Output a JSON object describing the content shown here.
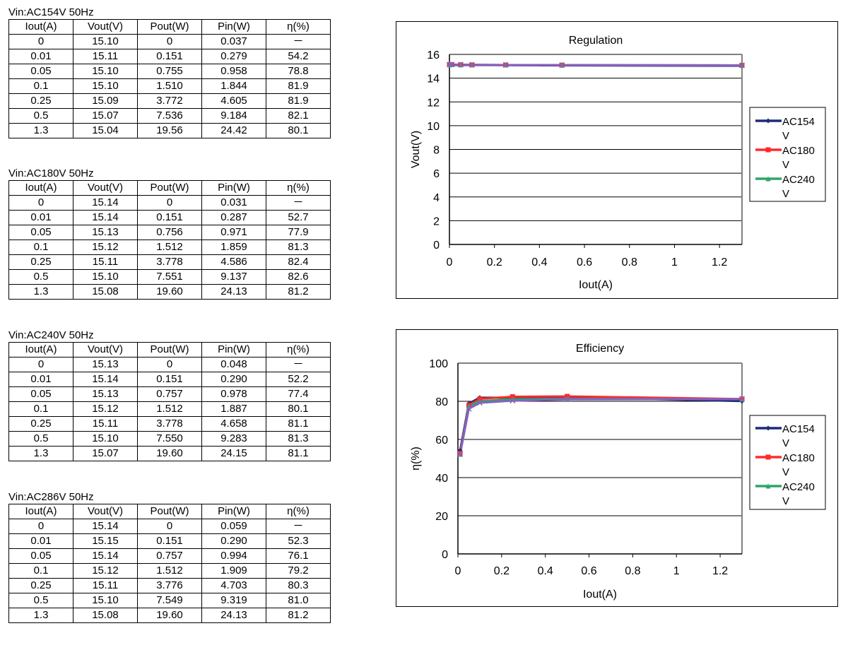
{
  "tables": [
    {
      "title": "Vin:AC154V 50Hz",
      "headers": [
        "Iout(A)",
        "Vout(V)",
        "Pout(W)",
        "Pin(W)",
        "η(%)"
      ],
      "rows": [
        [
          "0",
          "15.10",
          "0",
          "0.037",
          "－"
        ],
        [
          "0.01",
          "15.11",
          "0.151",
          "0.279",
          "54.2"
        ],
        [
          "0.05",
          "15.10",
          "0.755",
          "0.958",
          "78.8"
        ],
        [
          "0.1",
          "15.10",
          "1.510",
          "1.844",
          "81.9"
        ],
        [
          "0.25",
          "15.09",
          "3.772",
          "4.605",
          "81.9"
        ],
        [
          "0.5",
          "15.07",
          "7.536",
          "9.184",
          "82.1"
        ],
        [
          "1.3",
          "15.04",
          "19.56",
          "24.42",
          "80.1"
        ]
      ]
    },
    {
      "title": "Vin:AC180V 50Hz",
      "headers": [
        "Iout(A)",
        "Vout(V)",
        "Pout(W)",
        "Pin(W)",
        "η(%)"
      ],
      "rows": [
        [
          "0",
          "15.14",
          "0",
          "0.031",
          "－"
        ],
        [
          "0.01",
          "15.14",
          "0.151",
          "0.287",
          "52.7"
        ],
        [
          "0.05",
          "15.13",
          "0.756",
          "0.971",
          "77.9"
        ],
        [
          "0.1",
          "15.12",
          "1.512",
          "1.859",
          "81.3"
        ],
        [
          "0.25",
          "15.11",
          "3.778",
          "4.586",
          "82.4"
        ],
        [
          "0.5",
          "15.10",
          "7.551",
          "9.137",
          "82.6"
        ],
        [
          "1.3",
          "15.08",
          "19.60",
          "24.13",
          "81.2"
        ]
      ]
    },
    {
      "title": "Vin:AC240V 50Hz",
      "headers": [
        "Iout(A)",
        "Vout(V)",
        "Pout(W)",
        "Pin(W)",
        "η(%)"
      ],
      "rows": [
        [
          "0",
          "15.13",
          "0",
          "0.048",
          "－"
        ],
        [
          "0.01",
          "15.14",
          "0.151",
          "0.290",
          "52.2"
        ],
        [
          "0.05",
          "15.13",
          "0.757",
          "0.978",
          "77.4"
        ],
        [
          "0.1",
          "15.12",
          "1.512",
          "1.887",
          "80.1"
        ],
        [
          "0.25",
          "15.11",
          "3.778",
          "4.658",
          "81.1"
        ],
        [
          "0.5",
          "15.10",
          "7.550",
          "9.283",
          "81.3"
        ],
        [
          "1.3",
          "15.07",
          "19.60",
          "24.15",
          "81.1"
        ]
      ]
    },
    {
      "title": "Vin:AC286V 50Hz",
      "headers": [
        "Iout(A)",
        "Vout(V)",
        "Pout(W)",
        "Pin(W)",
        "η(%)"
      ],
      "rows": [
        [
          "0",
          "15.14",
          "0",
          "0.059",
          "－"
        ],
        [
          "0.01",
          "15.15",
          "0.151",
          "0.290",
          "52.3"
        ],
        [
          "0.05",
          "15.14",
          "0.757",
          "0.994",
          "76.1"
        ],
        [
          "0.1",
          "15.12",
          "1.512",
          "1.909",
          "79.2"
        ],
        [
          "0.25",
          "15.11",
          "3.776",
          "4.703",
          "80.3"
        ],
        [
          "0.5",
          "15.10",
          "7.549",
          "9.319",
          "81.0"
        ],
        [
          "1.3",
          "15.08",
          "19.60",
          "24.13",
          "81.2"
        ]
      ]
    }
  ],
  "chart_data": [
    {
      "type": "line",
      "title": "Regulation",
      "xlabel": "Iout(A)",
      "ylabel": "Vout(V)",
      "xlim": [
        0,
        1.3
      ],
      "ylim": [
        0,
        16
      ],
      "xticks": [
        "0",
        "0.2",
        "0.4",
        "0.6",
        "0.8",
        "1",
        "1.2"
      ],
      "yticks": [
        "0",
        "2",
        "4",
        "6",
        "8",
        "10",
        "12",
        "14",
        "16"
      ],
      "grid": "horizontal",
      "legend_position": "right",
      "x": [
        0,
        0.01,
        0.05,
        0.1,
        0.25,
        0.5,
        1.3
      ],
      "series": [
        {
          "name": "AC154V",
          "legend_label": [
            "AC154",
            "V"
          ],
          "color": "#1f2a7a",
          "marker": "diamond",
          "values": [
            15.1,
            15.11,
            15.1,
            15.1,
            15.09,
            15.07,
            15.04
          ]
        },
        {
          "name": "AC180V",
          "legend_label": [
            "AC180",
            "V"
          ],
          "color": "#ff2a2a",
          "marker": "square",
          "values": [
            15.14,
            15.14,
            15.13,
            15.12,
            15.11,
            15.1,
            15.08
          ]
        },
        {
          "name": "AC240V",
          "legend_label": [
            "AC240",
            "V"
          ],
          "color": "#2fa56a",
          "marker": "triangle",
          "values": [
            15.13,
            15.14,
            15.13,
            15.12,
            15.11,
            15.1,
            15.07
          ]
        },
        {
          "color": "#8a5fc2",
          "marker": "x",
          "values": [
            15.14,
            15.15,
            15.14,
            15.12,
            15.11,
            15.1,
            15.08
          ]
        }
      ]
    },
    {
      "type": "line",
      "title": "Efficiency",
      "xlabel": "Iout(A)",
      "ylabel": "η(%)",
      "xlim": [
        0,
        1.3
      ],
      "ylim": [
        0,
        100
      ],
      "xticks": [
        "0",
        "0.2",
        "0.4",
        "0.6",
        "0.8",
        "1",
        "1.2"
      ],
      "yticks": [
        "0",
        "20",
        "40",
        "60",
        "80",
        "100"
      ],
      "grid": "horizontal",
      "legend_position": "right",
      "x": [
        0.01,
        0.05,
        0.1,
        0.25,
        0.5,
        1.3
      ],
      "series": [
        {
          "name": "AC154V",
          "legend_label": [
            "AC154",
            "V"
          ],
          "color": "#1f2a7a",
          "marker": "diamond",
          "values": [
            54.2,
            78.8,
            81.9,
            81.9,
            82.1,
            80.1
          ]
        },
        {
          "name": "AC180V",
          "legend_label": [
            "AC180",
            "V"
          ],
          "color": "#ff2a2a",
          "marker": "square",
          "values": [
            52.7,
            77.9,
            81.3,
            82.4,
            82.6,
            81.2
          ]
        },
        {
          "name": "AC240V",
          "legend_label": [
            "AC240",
            "V"
          ],
          "color": "#2fa56a",
          "marker": "triangle",
          "values": [
            52.2,
            77.4,
            80.1,
            81.1,
            81.3,
            81.1
          ]
        },
        {
          "color": "#8a5fc2",
          "marker": "x",
          "values": [
            52.3,
            76.1,
            79.2,
            80.3,
            81.0,
            81.2
          ]
        }
      ]
    }
  ]
}
